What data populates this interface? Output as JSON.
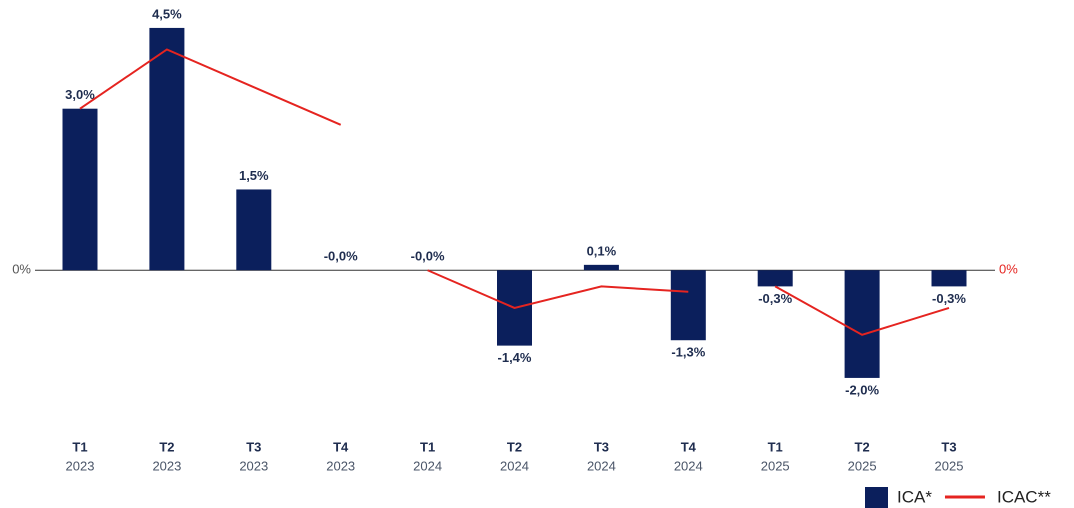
{
  "chart_data": {
    "type": "bar",
    "categories": [
      {
        "quarter": "T1",
        "year": "2023"
      },
      {
        "quarter": "T2",
        "year": "2023"
      },
      {
        "quarter": "T3",
        "year": "2023"
      },
      {
        "quarter": "T4",
        "year": "2023"
      },
      {
        "quarter": "T1",
        "year": "2024"
      },
      {
        "quarter": "T2",
        "year": "2024"
      },
      {
        "quarter": "T3",
        "year": "2024"
      },
      {
        "quarter": "T4",
        "year": "2024"
      },
      {
        "quarter": "T1",
        "year": "2025"
      },
      {
        "quarter": "T2",
        "year": "2025"
      },
      {
        "quarter": "T3",
        "year": "2025"
      }
    ],
    "series": [
      {
        "name": "ICA*",
        "type": "bar",
        "color": "#0b1f5c",
        "values": [
          3.0,
          4.5,
          1.5,
          0,
          0,
          -1.4,
          0.1,
          -1.3,
          -0.3,
          -2.0,
          -0.3
        ],
        "value_labels": [
          "3,0%",
          "4,5%",
          "1,5%",
          "-0,0%",
          "-0,0%",
          "-1,4%",
          "0,1%",
          "-1,3%",
          "-0,3%",
          "-2,0%",
          "-0,3%"
        ]
      },
      {
        "name": "ICAC**",
        "type": "line",
        "color": "#e52420",
        "axis": "y2",
        "values": [
          3.0,
          4.1,
          3.4,
          2.7,
          0,
          -0.7,
          -0.3,
          -0.4,
          -0.3,
          -1.2,
          -0.7
        ]
      }
    ],
    "ylim": [
      -2.8,
      5.0
    ],
    "yticks": [
      {
        "value": 0,
        "label": "0%"
      }
    ],
    "y2lim": [
      -2.8,
      5.0
    ],
    "y2ticks": [
      {
        "value": 0,
        "label": "0%"
      }
    ],
    "y2tick_color": "#e52420",
    "legend": "bottom-right"
  }
}
